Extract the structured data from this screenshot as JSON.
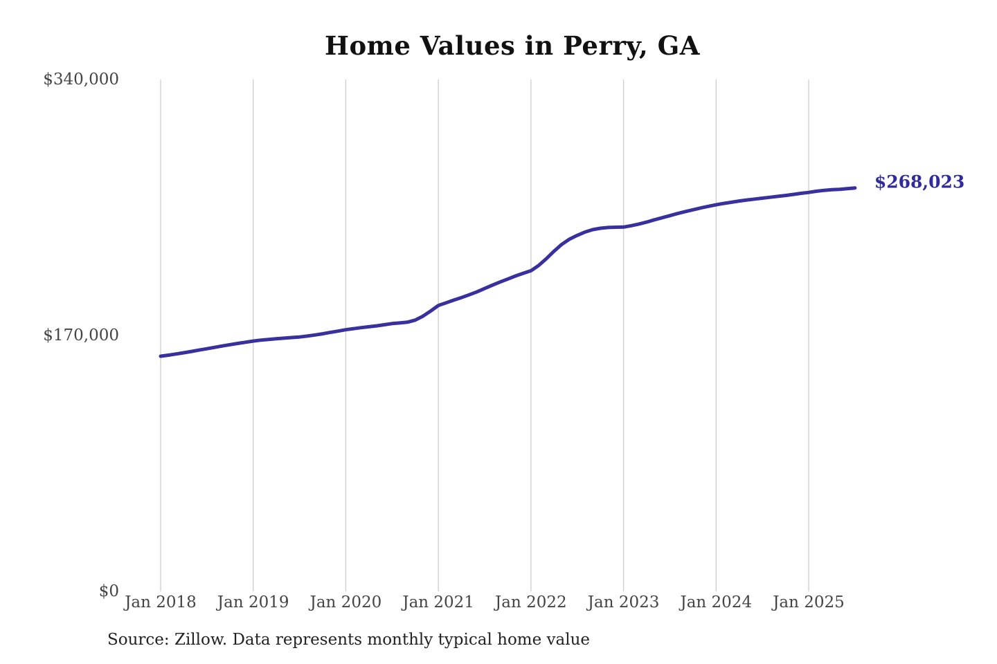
{
  "title": "Home Values in Perry, GA",
  "source_note": "Source: Zillow. Data represents monthly typical home value",
  "end_label": "$268,023",
  "colors": {
    "line": "#38309c",
    "end_label_text": "#302a9b",
    "grid": "#cccccc",
    "tick_text": "#444444",
    "title_text": "#111111",
    "source_text": "#222222",
    "background": "#ffffff"
  },
  "chart_data": {
    "type": "line",
    "title": "Home Values in Perry, GA",
    "xlabel": "",
    "ylabel": "",
    "ylim": [
      0,
      340000
    ],
    "grid": "vertical-only",
    "legend_position": "none",
    "x_start_month": "Jan 2018",
    "x_end_month": "Jul 2025",
    "months_per_point": 1,
    "x_tick_labels": [
      "Jan 2018",
      "Jan 2019",
      "Jan 2020",
      "Jan 2021",
      "Jan 2022",
      "Jan 2023",
      "Jan 2024",
      "Jan 2025"
    ],
    "y_ticks": [
      {
        "label": "$0",
        "value": 0
      },
      {
        "label": "$170,000",
        "value": 170000
      },
      {
        "label": "$340,000",
        "value": 340000
      }
    ],
    "end_value": 268023,
    "series": [
      {
        "name": "Monthly typical home value",
        "values": [
          156200,
          156900,
          157700,
          158500,
          159400,
          160300,
          161200,
          162100,
          163000,
          163900,
          164700,
          165500,
          166300,
          166900,
          167400,
          167800,
          168200,
          168600,
          169000,
          169600,
          170300,
          171100,
          172000,
          172900,
          173800,
          174500,
          175200,
          175800,
          176400,
          177100,
          177900,
          178300,
          178800,
          180200,
          182800,
          186200,
          189900,
          191700,
          193500,
          195200,
          197000,
          199000,
          201200,
          203400,
          205500,
          207500,
          209500,
          211300,
          213000,
          216500,
          221000,
          226000,
          230500,
          234000,
          236500,
          238700,
          240300,
          241200,
          241700,
          241900,
          242000,
          242900,
          244000,
          245300,
          246800,
          248200,
          249600,
          251000,
          252300,
          253500,
          254700,
          255800,
          256800,
          257700,
          258500,
          259300,
          260000,
          260600,
          261200,
          261800,
          262400,
          263000,
          263700,
          264400,
          265000,
          265800,
          266400,
          266800,
          267100,
          267500,
          268023
        ]
      }
    ]
  }
}
